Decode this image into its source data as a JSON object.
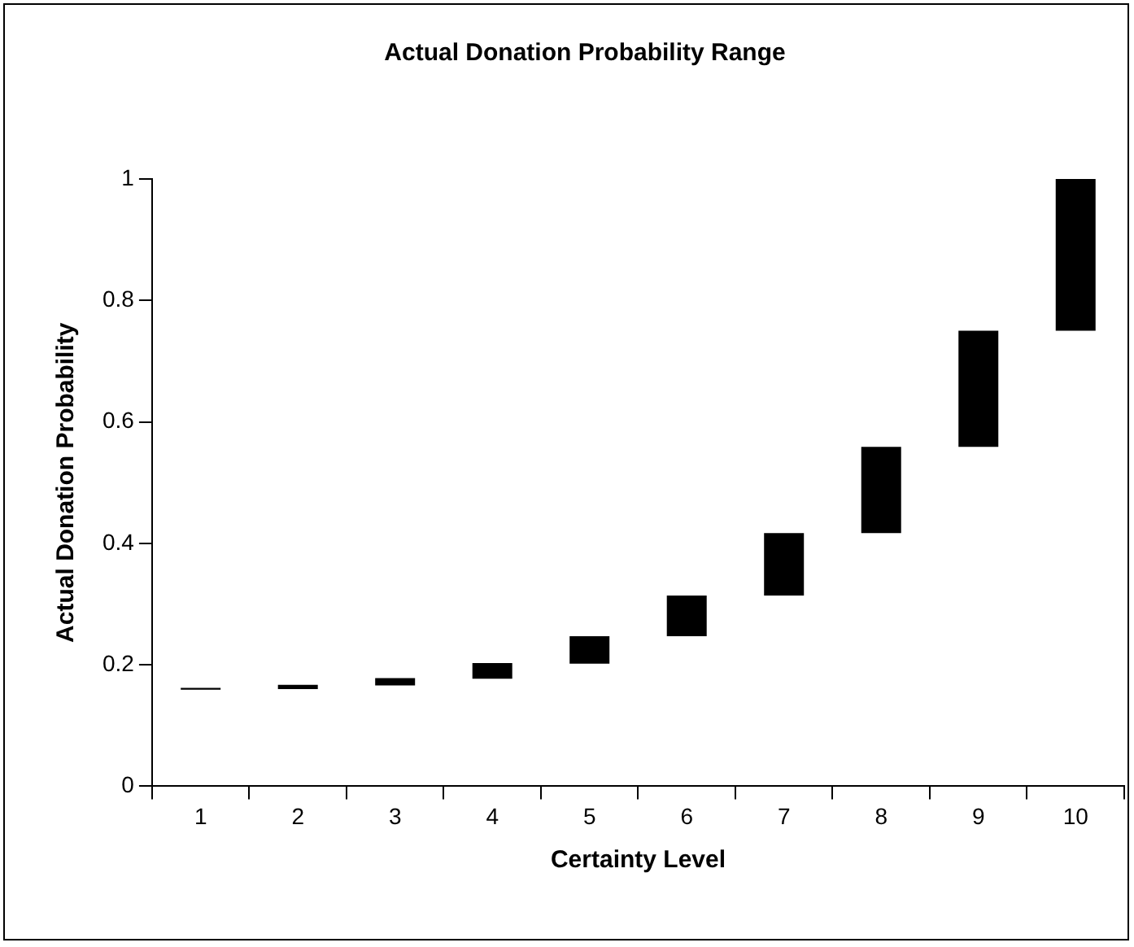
{
  "chart_data": {
    "type": "bar",
    "title": "Actual Donation Probability Range",
    "xlabel": "Certainty Level",
    "ylabel": "Actual Donation Probability",
    "categories": [
      "1",
      "2",
      "3",
      "4",
      "5",
      "6",
      "7",
      "8",
      "9",
      "10"
    ],
    "base": [
      0.159,
      0.16,
      0.166,
      0.177,
      0.202,
      0.247,
      0.314,
      0.417,
      0.559,
      0.75
    ],
    "values": [
      0.003,
      0.007,
      0.012,
      0.026,
      0.045,
      0.067,
      0.103,
      0.142,
      0.191,
      0.25
    ],
    "color": "#000000",
    "ylim": [
      0,
      1
    ],
    "yticks": [
      0,
      0.2,
      0.4,
      0.6,
      0.8,
      1
    ],
    "grid": false,
    "legend": false
  }
}
